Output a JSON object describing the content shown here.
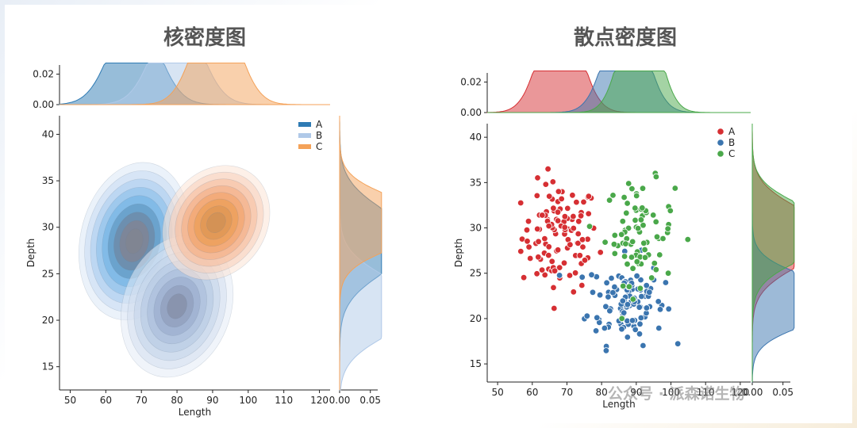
{
  "chart_data": [
    {
      "panel": "left",
      "type": "kde_jointplot",
      "title": "核密度图",
      "xlabel": "Length",
      "ylabel": "Depth",
      "xlim": [
        47,
        123
      ],
      "ylim": [
        12.5,
        42
      ],
      "xticks": [
        50,
        60,
        70,
        80,
        90,
        100,
        110,
        120
      ],
      "yticks": [
        15,
        20,
        25,
        30,
        35,
        40
      ],
      "marginal_top_ticks": [
        "0.00",
        "0.02"
      ],
      "marginal_right_ticks": [
        "0.00",
        "0.05"
      ],
      "legend_placement": "top-right",
      "series": [
        {
          "name": "A",
          "color": "#2f7bb4",
          "center": [
            68,
            28.5
          ],
          "sd": [
            6.5,
            3.3
          ]
        },
        {
          "name": "B",
          "color": "#b0c9e8",
          "center": [
            80,
            21.5
          ],
          "sd": [
            6.5,
            3.0
          ]
        },
        {
          "name": "C",
          "color": "#f4a259",
          "center": [
            91,
            30.5
          ],
          "sd": [
            6.0,
            2.5
          ]
        }
      ]
    },
    {
      "panel": "right",
      "type": "scatter_jointplot",
      "title": "散点密度图",
      "xlabel": "Length",
      "ylabel": "Depth",
      "xlim": [
        47,
        123
      ],
      "ylim": [
        13,
        41.5
      ],
      "xticks": [
        50,
        60,
        70,
        80,
        90,
        100,
        110,
        120
      ],
      "yticks": [
        15,
        20,
        25,
        30,
        35,
        40
      ],
      "marginal_top_ticks": [
        "0.00",
        "0.02"
      ],
      "marginal_right_ticks": [
        "0.00",
        "0.05"
      ],
      "legend_placement": "top-right",
      "series": [
        {
          "name": "A",
          "color": "#d62f33",
          "center": [
            68,
            29
          ],
          "sd": [
            5.5,
            3.0
          ],
          "n": 110
        },
        {
          "name": "B",
          "color": "#3b75af",
          "center": [
            87,
            22
          ],
          "sd": [
            5.5,
            2.4
          ],
          "n": 110
        },
        {
          "name": "C",
          "color": "#4aa84a",
          "center": [
            91,
            29.5
          ],
          "sd": [
            5.0,
            2.8
          ],
          "n": 80
        }
      ]
    }
  ],
  "watermark": "公众号 · 派森诺生物",
  "colors": {
    "title": "#555555",
    "axis": "#222222"
  }
}
